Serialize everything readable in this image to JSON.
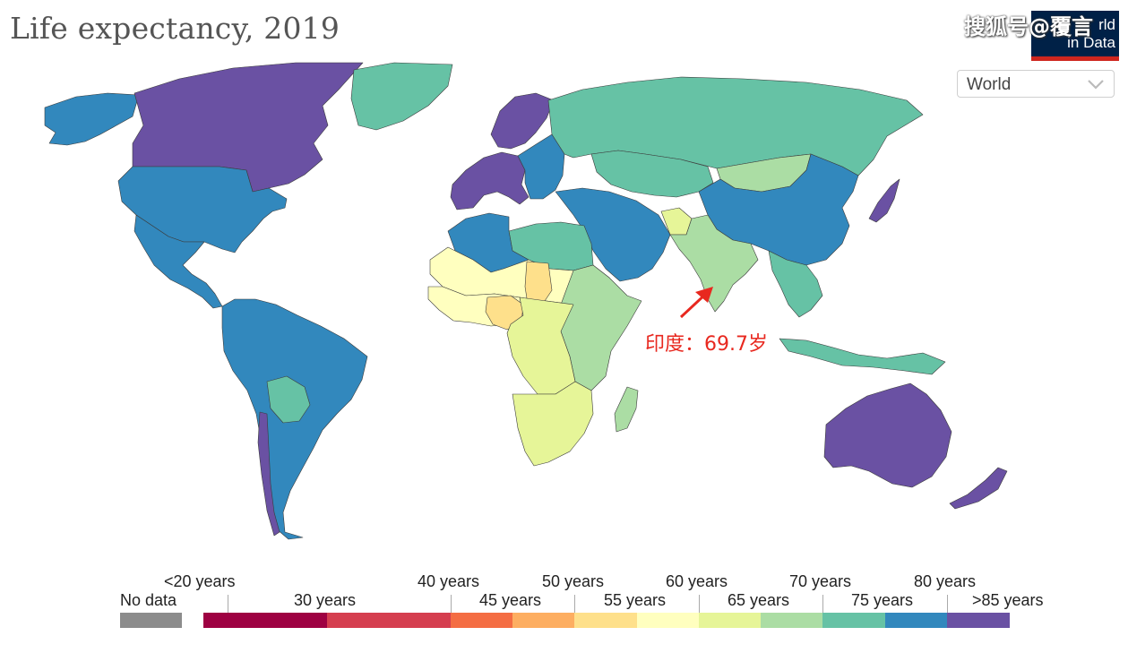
{
  "title": "Life expectancy, 2019",
  "logo": {
    "line1": "rld",
    "line2": "in Data"
  },
  "watermark": "搜狐号@覆言",
  "entity_selector": {
    "value": "World"
  },
  "annotation": {
    "text": "印度：69.7岁"
  },
  "legend": {
    "no_data_label": "No data",
    "no_data_color": "#8c8c8c",
    "bins": [
      {
        "color": "#9e0142"
      },
      {
        "color": "#d53e4f"
      },
      {
        "color": "#f46d43"
      },
      {
        "color": "#fdae61"
      },
      {
        "color": "#fee08b"
      },
      {
        "color": "#ffffbf"
      },
      {
        "color": "#e6f598"
      },
      {
        "color": "#abdda4"
      },
      {
        "color": "#66c2a5"
      },
      {
        "color": "#3288bd"
      },
      {
        "color": "#6a51a3"
      }
    ],
    "tick_labels_upper": [
      "<20 years",
      "40 years",
      "50 years",
      "60 years",
      "70 years",
      "80 years"
    ],
    "tick_labels_lower": [
      "30 years",
      "45 years",
      "55 years",
      "65 years",
      "75 years",
      ">85 years"
    ]
  },
  "regions": {
    "north_america": "#3288bd",
    "canada": "#6a51a3",
    "alaska": "#3288bd",
    "greenland": "#66c2a5",
    "mexico_central": "#3288bd",
    "south_america": "#3288bd",
    "bolivia": "#66c2a5",
    "chile": "#6a51a3",
    "europe_west": "#6a51a3",
    "scandinavia": "#6a51a3",
    "europe_east": "#3288bd",
    "russia": "#66c2a5",
    "kazakhstan": "#66c2a5",
    "mongolia": "#abdda4",
    "china": "#3288bd",
    "japan": "#6a51a3",
    "middle_east": "#3288bd",
    "india": "#abdda4",
    "southeast_asia": "#66c2a5",
    "indonesia": "#66c2a5",
    "australia": "#6a51a3",
    "new_zealand": "#6a51a3",
    "north_africa": "#66c2a5",
    "algeria": "#3288bd",
    "sahel": "#ffffbf",
    "west_africa": "#ffffbf",
    "nigeria": "#fee08b",
    "chad": "#fee08b",
    "central_africa": "#e6f598",
    "east_africa": "#abdda4",
    "southern_africa": "#e6f598",
    "madagascar": "#abdda4",
    "afghanistan": "#e6f598"
  }
}
